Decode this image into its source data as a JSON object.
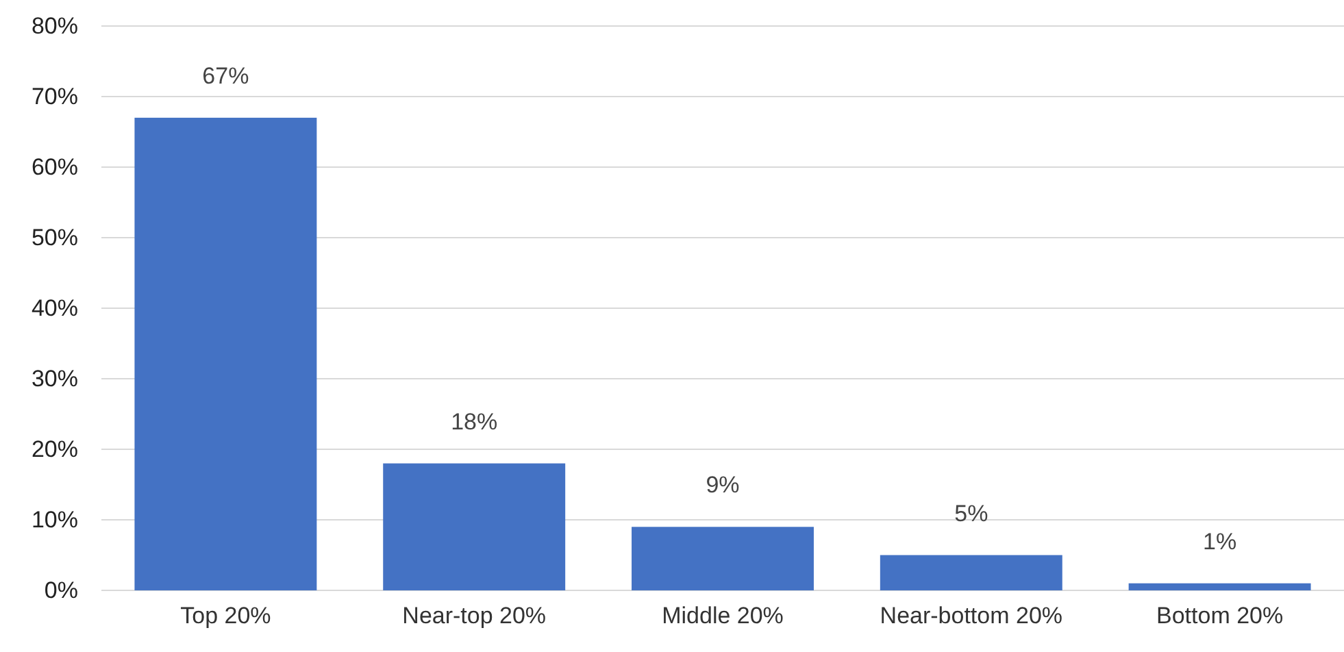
{
  "chart_data": {
    "type": "bar",
    "categories": [
      "Top 20%",
      "Near-top 20%",
      "Middle 20%",
      "Near-bottom 20%",
      "Bottom 20%"
    ],
    "values": [
      67,
      18,
      9,
      5,
      1
    ],
    "value_labels": [
      "67%",
      "18%",
      "9%",
      "5%",
      "1%"
    ],
    "color": "#4472c4",
    "ylim": [
      0,
      80
    ],
    "yticks": [
      {
        "value": 0,
        "label": "0%"
      },
      {
        "value": 10,
        "label": "10%"
      },
      {
        "value": 20,
        "label": "20%"
      },
      {
        "value": 30,
        "label": "30%"
      },
      {
        "value": 40,
        "label": "40%"
      },
      {
        "value": 50,
        "label": "50%"
      },
      {
        "value": 60,
        "label": "60%"
      },
      {
        "value": 70,
        "label": "70%"
      },
      {
        "value": 80,
        "label": "80%"
      }
    ],
    "grid": "y"
  }
}
